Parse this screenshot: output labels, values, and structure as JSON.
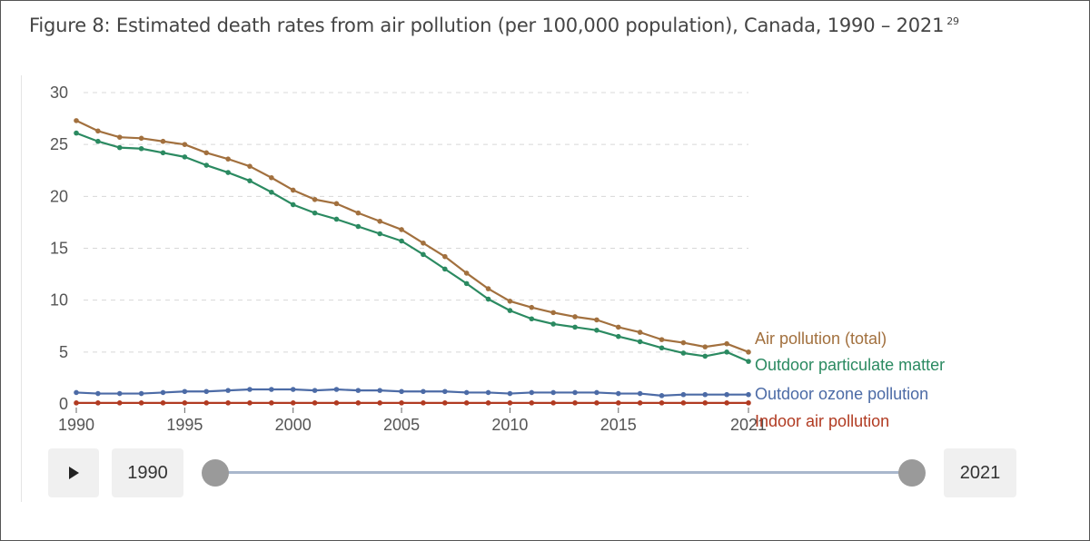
{
  "caption": {
    "text": "Figure 8: Estimated death rates from air pollution (per 100,000 population), Canada, 1990 – 2021",
    "footnote": "29"
  },
  "controls": {
    "play_icon": "play-icon",
    "start_year": "1990",
    "end_year": "2021"
  },
  "colors": {
    "total": "#a2703e",
    "particulate": "#2b8a61",
    "ozone": "#4c6ba6",
    "indoor": "#b13b22",
    "grid": "#d8d8d8"
  },
  "chart_data": {
    "type": "line",
    "title": "",
    "xlabel": "",
    "ylabel": "",
    "xlim": [
      1990,
      2021
    ],
    "ylim": [
      0,
      30
    ],
    "x_ticks": [
      "1990",
      "1995",
      "2000",
      "2005",
      "2010",
      "2015",
      "2021"
    ],
    "y_ticks": [
      "0",
      "5",
      "10",
      "15",
      "20",
      "25",
      "30"
    ],
    "grid": "horizontal dashed",
    "legend": "labels at line ends (right)",
    "x": [
      1990,
      1991,
      1992,
      1993,
      1994,
      1995,
      1996,
      1997,
      1998,
      1999,
      2000,
      2001,
      2002,
      2003,
      2004,
      2005,
      2006,
      2007,
      2008,
      2009,
      2010,
      2011,
      2012,
      2013,
      2014,
      2015,
      2016,
      2017,
      2018,
      2019,
      2020,
      2021
    ],
    "series": [
      {
        "name": "Air pollution (total)",
        "color": "#a2703e",
        "values": [
          27.3,
          26.3,
          25.7,
          25.6,
          25.3,
          25.0,
          24.2,
          23.6,
          22.9,
          21.8,
          20.6,
          19.7,
          19.3,
          18.4,
          17.6,
          16.8,
          15.5,
          14.2,
          12.6,
          11.1,
          9.9,
          9.3,
          8.8,
          8.4,
          8.1,
          7.4,
          6.9,
          6.2,
          5.9,
          5.5,
          5.8,
          5.0
        ]
      },
      {
        "name": "Outdoor particulate matter",
        "color": "#2b8a61",
        "values": [
          26.1,
          25.3,
          24.7,
          24.6,
          24.2,
          23.8,
          23.0,
          22.3,
          21.5,
          20.4,
          19.2,
          18.4,
          17.8,
          17.1,
          16.4,
          15.7,
          14.4,
          13.0,
          11.6,
          10.1,
          9.0,
          8.2,
          7.7,
          7.4,
          7.1,
          6.5,
          6.0,
          5.4,
          4.9,
          4.6,
          5.0,
          4.1
        ]
      },
      {
        "name": "Outdoor ozone pollution",
        "color": "#4c6ba6",
        "values": [
          1.1,
          1.0,
          1.0,
          1.0,
          1.1,
          1.2,
          1.2,
          1.3,
          1.4,
          1.4,
          1.4,
          1.3,
          1.4,
          1.3,
          1.3,
          1.2,
          1.2,
          1.2,
          1.1,
          1.1,
          1.0,
          1.1,
          1.1,
          1.1,
          1.1,
          1.0,
          1.0,
          0.8,
          0.9,
          0.9,
          0.9,
          0.9
        ]
      },
      {
        "name": "Indoor air pollution",
        "color": "#b13b22",
        "values": [
          0.1,
          0.1,
          0.1,
          0.1,
          0.1,
          0.1,
          0.1,
          0.1,
          0.1,
          0.1,
          0.1,
          0.1,
          0.1,
          0.1,
          0.1,
          0.1,
          0.1,
          0.1,
          0.1,
          0.1,
          0.1,
          0.1,
          0.1,
          0.1,
          0.1,
          0.1,
          0.1,
          0.1,
          0.1,
          0.1,
          0.1,
          0.1
        ]
      }
    ]
  }
}
